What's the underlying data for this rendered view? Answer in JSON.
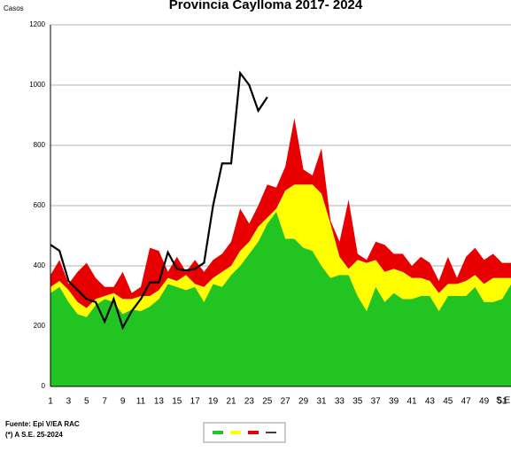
{
  "chart_data": {
    "type": "stacked-area-line",
    "title": "Provincia Caylloma 2017- 2024",
    "y_label": "Casos",
    "x_label": "S.E",
    "notes": [
      "Fuente: Epi V/EA RAC",
      "(*) A S.E. 25-2024"
    ],
    "categories": [
      1,
      null,
      3,
      null,
      5,
      null,
      7,
      null,
      9,
      null,
      11,
      null,
      13,
      null,
      15,
      null,
      17,
      null,
      19,
      null,
      21,
      null,
      23,
      null,
      25,
      null,
      27,
      null,
      29,
      null,
      31,
      null,
      33,
      null,
      35,
      null,
      37,
      null,
      39,
      null,
      41,
      null,
      43,
      null,
      45,
      null,
      47,
      null,
      49,
      null,
      51,
      null
    ],
    "ylim": [
      0,
      1200
    ],
    "yticks": [
      0,
      200,
      400,
      600,
      800,
      1000,
      1200
    ],
    "grid": true,
    "series": [
      {
        "color": "#22c422",
        "kind": "area",
        "values": [
          310,
          330,
          280,
          240,
          230,
          270,
          290,
          280,
          240,
          255,
          250,
          265,
          290,
          340,
          330,
          320,
          330,
          280,
          340,
          330,
          370,
          400,
          440,
          480,
          540,
          580,
          490,
          490,
          460,
          450,
          400,
          360,
          370,
          370,
          300,
          250,
          330,
          280,
          310,
          290,
          290,
          300,
          300,
          250,
          300,
          300,
          300,
          330,
          280,
          280,
          290,
          340
        ]
      },
      {
        "color": "#ffff00",
        "kind": "area",
        "values": [
          20,
          20,
          40,
          40,
          30,
          20,
          10,
          30,
          50,
          35,
          50,
          35,
          30,
          20,
          20,
          50,
          10,
          50,
          20,
          50,
          30,
          50,
          40,
          50,
          20,
          10,
          160,
          180,
          210,
          220,
          240,
          180,
          60,
          20,
          120,
          160,
          90,
          100,
          80,
          90,
          70,
          60,
          50,
          60,
          40,
          40,
          50,
          40,
          60,
          80,
          70,
          20
        ]
      },
      {
        "color": "#e80000",
        "kind": "area",
        "values": [
          40,
          70,
          20,
          100,
          150,
          70,
          30,
          20,
          90,
          20,
          30,
          160,
          130,
          20,
          80,
          10,
          80,
          50,
          60,
          60,
          80,
          140,
          60,
          70,
          110,
          70,
          80,
          220,
          50,
          30,
          150,
          10,
          50,
          230,
          20,
          10,
          60,
          90,
          50,
          60,
          40,
          70,
          60,
          40,
          90,
          20,
          80,
          90,
          80,
          80,
          50,
          50
        ]
      },
      {
        "color": "#000000",
        "kind": "line",
        "values": [
          470,
          450,
          350,
          320,
          290,
          280,
          215,
          290,
          195,
          250,
          290,
          345,
          345,
          445,
          390,
          385,
          390,
          410,
          600,
          740,
          740,
          1040,
          1000,
          915,
          960,
          null,
          null,
          null,
          null,
          null,
          null,
          null,
          null,
          null,
          null,
          null,
          null,
          null,
          null,
          null,
          null,
          null,
          null,
          null,
          null,
          null,
          null,
          null,
          null,
          null,
          null,
          null
        ]
      }
    ]
  }
}
